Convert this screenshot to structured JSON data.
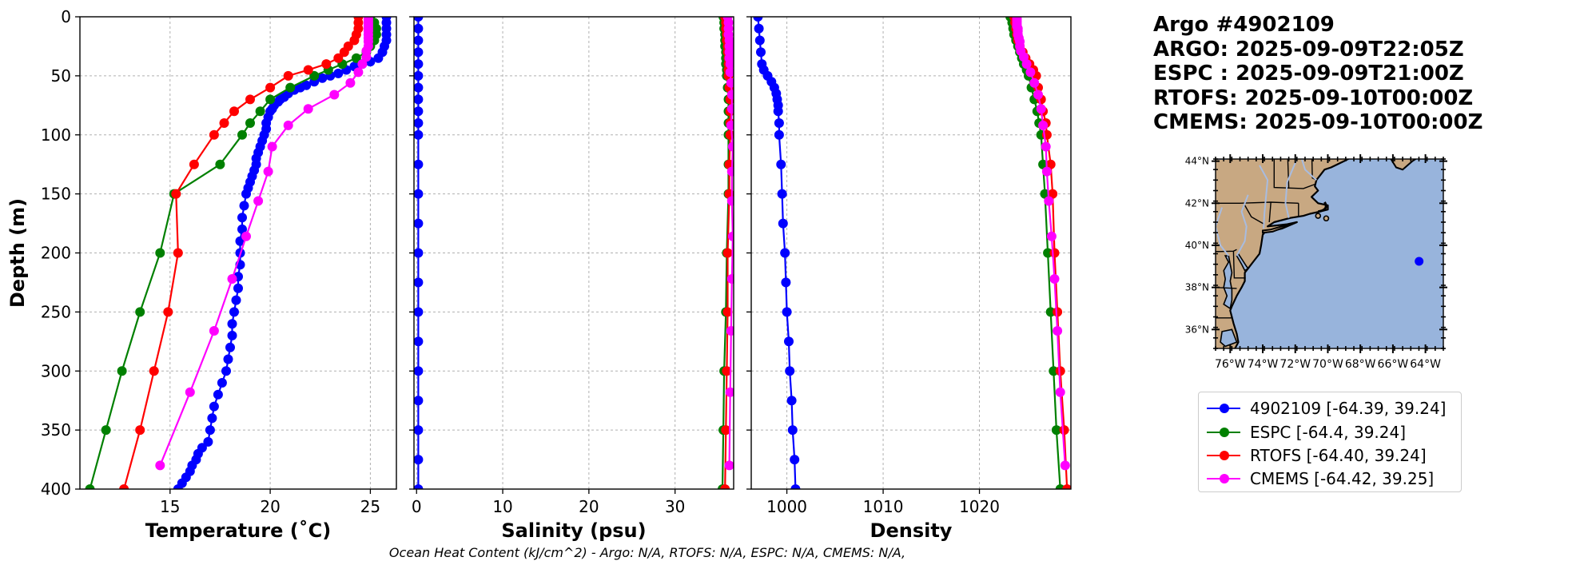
{
  "colors": {
    "argo": "#0000ff",
    "espc": "#008000",
    "rtofs": "#ff0000",
    "cmems": "#ff00ff",
    "land": "#c8a882",
    "ocean": "#98b4dc",
    "river": "#a8bce0",
    "grid": "#b0b0b0"
  },
  "title_lines": [
    "Argo #4902109",
    "ARGO: 2025-09-09T22:05Z",
    "ESPC : 2025-09-09T21:00Z",
    "RTOFS: 2025-09-10T00:00Z",
    "CMEMS: 2025-09-10T00:00Z"
  ],
  "footer": "Ocean Heat Content (kJ/cm^2) - Argo: N/A,  RTOFS: N/A,  ESPC: N/A,  CMEMS: N/A,",
  "legend": [
    {
      "key": "argo",
      "label": "4902109 [-64.39, 39.24]"
    },
    {
      "key": "espc",
      "label": "ESPC [-64.4, 39.24]"
    },
    {
      "key": "rtofs",
      "label": "RTOFS [-64.40, 39.24]"
    },
    {
      "key": "cmems",
      "label": "CMEMS [-64.42, 39.25]"
    }
  ],
  "map": {
    "lat_ticks": [
      "44°N",
      "42°N",
      "40°N",
      "38°N",
      "36°N"
    ],
    "lat_values": [
      44,
      42,
      40,
      38,
      36
    ],
    "lon_ticks": [
      "76°W",
      "74°W",
      "72°W",
      "70°W",
      "68°W",
      "66°W",
      "64°W"
    ],
    "lon_values": [
      -76,
      -74,
      -72,
      -70,
      -68,
      -66,
      -64
    ],
    "extent": {
      "lon_min": -76.9,
      "lon_max": -62.9,
      "lat_min": 35.1,
      "lat_max": 44.1
    },
    "float_position": {
      "lon": -64.39,
      "lat": 39.24
    }
  },
  "chart_data": [
    {
      "type": "line",
      "xlabel": "Temperature (˚C)",
      "ylabel": "Depth (m)",
      "xlim": [
        10.5,
        26.3
      ],
      "ylim": [
        400,
        0
      ],
      "xticks": [
        15,
        20,
        25
      ],
      "xtick_labels": [
        "15",
        "20",
        "25"
      ],
      "yticks": [
        0,
        50,
        100,
        150,
        200,
        250,
        300,
        350,
        400
      ],
      "ytick_labels": [
        "0",
        "50",
        "100",
        "150",
        "200",
        "250",
        "300",
        "350",
        "400"
      ],
      "series": [
        {
          "key": "argo",
          "name": "4902109",
          "depth": [
            0,
            5,
            10,
            15,
            20,
            25,
            30,
            35,
            38,
            40,
            42,
            45,
            48,
            50,
            52,
            55,
            58,
            60,
            62,
            65,
            68,
            70,
            72,
            75,
            78,
            80,
            85,
            90,
            95,
            100,
            105,
            110,
            115,
            120,
            125,
            130,
            135,
            140,
            145,
            150,
            160,
            170,
            180,
            190,
            200,
            210,
            220,
            230,
            240,
            250,
            260,
            270,
            280,
            290,
            300,
            310,
            320,
            330,
            340,
            350,
            360,
            365,
            370,
            375,
            380,
            385,
            390,
            395,
            400
          ],
          "values": [
            25.8,
            25.8,
            25.8,
            25.8,
            25.8,
            25.7,
            25.6,
            25.4,
            25.0,
            24.6,
            24.2,
            23.8,
            23.4,
            23.0,
            22.6,
            22.2,
            21.8,
            21.5,
            21.2,
            20.9,
            20.7,
            20.5,
            20.4,
            20.2,
            20.1,
            20.0,
            19.9,
            19.8,
            19.8,
            19.7,
            19.6,
            19.5,
            19.4,
            19.3,
            19.3,
            19.2,
            19.1,
            19.0,
            18.9,
            18.8,
            18.7,
            18.6,
            18.6,
            18.5,
            18.5,
            18.5,
            18.4,
            18.4,
            18.3,
            18.2,
            18.1,
            18.1,
            18.0,
            17.9,
            17.8,
            17.6,
            17.4,
            17.2,
            17.1,
            17.0,
            16.9,
            16.6,
            16.4,
            16.3,
            16.1,
            16.0,
            15.8,
            15.6,
            15.4
          ]
        },
        {
          "key": "espc",
          "name": "ESPC",
          "depth": [
            0,
            5,
            10,
            15,
            20,
            25,
            30,
            35,
            40,
            45,
            50,
            60,
            70,
            80,
            90,
            100,
            125,
            150,
            200,
            250,
            300,
            350,
            400
          ],
          "values": [
            25.0,
            25.2,
            25.3,
            25.3,
            25.2,
            25.0,
            24.8,
            24.3,
            23.6,
            22.9,
            22.2,
            21.0,
            20.0,
            19.5,
            19.0,
            18.6,
            17.5,
            15.2,
            14.5,
            13.5,
            12.6,
            11.8,
            11.0
          ]
        },
        {
          "key": "rtofs",
          "name": "RTOFS",
          "depth": [
            0,
            5,
            10,
            15,
            20,
            25,
            30,
            35,
            40,
            45,
            50,
            60,
            70,
            80,
            90,
            100,
            125,
            150,
            200,
            250,
            300,
            350,
            400
          ],
          "values": [
            24.4,
            24.4,
            24.4,
            24.3,
            24.2,
            23.9,
            23.7,
            23.4,
            22.8,
            21.9,
            20.9,
            20.0,
            19.0,
            18.2,
            17.7,
            17.2,
            16.2,
            15.3,
            15.4,
            14.9,
            14.2,
            13.5,
            12.7
          ]
        },
        {
          "key": "cmems",
          "name": "CMEMS",
          "depth": [
            0,
            2,
            4,
            6,
            8,
            10,
            12,
            15,
            18,
            21,
            25,
            29,
            34,
            40,
            47,
            56,
            66,
            78,
            92,
            110,
            131,
            156,
            186,
            222,
            266,
            318,
            380
          ],
          "values": [
            24.9,
            24.9,
            24.9,
            24.9,
            24.9,
            24.9,
            24.9,
            24.9,
            24.9,
            24.9,
            24.9,
            24.8,
            24.8,
            24.6,
            24.4,
            24.0,
            23.2,
            21.9,
            20.9,
            20.1,
            19.9,
            19.4,
            18.8,
            18.1,
            17.2,
            16.0,
            14.5
          ]
        }
      ]
    },
    {
      "type": "line",
      "xlabel": "Salinity (psu)",
      "ylabel": "",
      "xlim": [
        -0.3,
        36.8
      ],
      "ylim": [
        400,
        0
      ],
      "xticks": [
        0,
        10,
        20,
        30
      ],
      "xtick_labels": [
        "0",
        "10",
        "20",
        "30"
      ],
      "yticks": [
        0,
        50,
        100,
        150,
        200,
        250,
        300,
        350,
        400
      ],
      "series": [
        {
          "key": "argo",
          "name": "4902109",
          "depth": [
            0,
            10,
            20,
            30,
            40,
            50,
            60,
            70,
            80,
            90,
            100,
            125,
            150,
            175,
            200,
            225,
            250,
            275,
            300,
            325,
            350,
            375,
            400
          ],
          "values": [
            0.2,
            0.2,
            0.2,
            0.2,
            0.2,
            0.2,
            0.2,
            0.2,
            0.2,
            0.2,
            0.2,
            0.2,
            0.2,
            0.2,
            0.2,
            0.2,
            0.2,
            0.2,
            0.2,
            0.2,
            0.2,
            0.2,
            0.2
          ]
        },
        {
          "key": "espc",
          "name": "ESPC",
          "depth": [
            0,
            5,
            10,
            15,
            20,
            25,
            30,
            35,
            40,
            45,
            50,
            60,
            70,
            80,
            90,
            100,
            125,
            150,
            200,
            250,
            300,
            350,
            400
          ],
          "values": [
            35.6,
            35.7,
            35.7,
            35.8,
            35.8,
            35.8,
            35.9,
            35.9,
            35.9,
            36.0,
            36.0,
            36.1,
            36.2,
            36.2,
            36.2,
            36.2,
            36.2,
            36.2,
            36.0,
            35.9,
            35.7,
            35.6,
            35.5
          ]
        },
        {
          "key": "rtofs",
          "name": "RTOFS",
          "depth": [
            0,
            5,
            10,
            15,
            20,
            25,
            30,
            35,
            40,
            45,
            50,
            60,
            70,
            80,
            90,
            100,
            125,
            150,
            200,
            250,
            300,
            350,
            400
          ],
          "values": [
            35.8,
            35.9,
            35.9,
            36.0,
            36.0,
            36.1,
            36.1,
            36.2,
            36.2,
            36.2,
            36.2,
            36.3,
            36.4,
            36.4,
            36.4,
            36.4,
            36.3,
            36.3,
            36.1,
            36.1,
            36.0,
            35.9,
            35.8
          ]
        },
        {
          "key": "cmems",
          "name": "CMEMS",
          "depth": [
            0,
            5,
            10,
            15,
            20,
            25,
            30,
            35,
            40,
            47,
            56,
            66,
            78,
            92,
            110,
            131,
            156,
            186,
            222,
            266,
            318,
            380
          ],
          "values": [
            36.1,
            36.2,
            36.2,
            36.2,
            36.3,
            36.3,
            36.3,
            36.3,
            36.4,
            36.4,
            36.5,
            36.6,
            36.6,
            36.5,
            36.7,
            36.6,
            36.6,
            36.7,
            36.6,
            36.5,
            36.4,
            36.3
          ]
        }
      ]
    },
    {
      "type": "line",
      "xlabel": "Density",
      "ylabel": "",
      "xlim": [
        996.3,
        1029.5
      ],
      "ylim": [
        400,
        0
      ],
      "xticks": [
        1000,
        1010,
        1020
      ],
      "xtick_labels": [
        "1000",
        "1010",
        "1020"
      ],
      "yticks": [
        0,
        50,
        100,
        150,
        200,
        250,
        300,
        350,
        400
      ],
      "series": [
        {
          "key": "argo",
          "name": "4902109",
          "depth": [
            0,
            10,
            20,
            30,
            40,
            45,
            50,
            55,
            60,
            65,
            70,
            75,
            80,
            90,
            100,
            125,
            150,
            175,
            200,
            225,
            250,
            275,
            300,
            325,
            350,
            375,
            400
          ],
          "values": [
            997.0,
            997.1,
            997.2,
            997.3,
            997.4,
            997.6,
            998.0,
            998.4,
            998.7,
            998.9,
            999.0,
            999.1,
            999.1,
            999.2,
            999.2,
            999.4,
            999.5,
            999.6,
            999.8,
            999.9,
            1000.0,
            1000.2,
            1000.3,
            1000.5,
            1000.6,
            1000.8,
            1000.9
          ]
        },
        {
          "key": "espc",
          "name": "ESPC",
          "depth": [
            0,
            5,
            10,
            15,
            20,
            25,
            30,
            35,
            40,
            45,
            50,
            60,
            70,
            80,
            90,
            100,
            125,
            150,
            200,
            250,
            300,
            350,
            400
          ],
          "values": [
            1023.2,
            1023.4,
            1023.5,
            1023.6,
            1023.8,
            1024.0,
            1024.2,
            1024.4,
            1024.6,
            1024.9,
            1025.1,
            1025.4,
            1025.7,
            1026.0,
            1026.2,
            1026.4,
            1026.6,
            1026.8,
            1027.1,
            1027.4,
            1027.7,
            1028.0,
            1028.4
          ]
        },
        {
          "key": "rtofs",
          "name": "RTOFS",
          "depth": [
            0,
            5,
            10,
            15,
            20,
            25,
            30,
            35,
            40,
            45,
            50,
            60,
            70,
            80,
            90,
            100,
            125,
            150,
            200,
            250,
            300,
            350,
            400
          ],
          "values": [
            1023.6,
            1023.7,
            1023.8,
            1023.9,
            1024.0,
            1024.2,
            1024.5,
            1024.8,
            1025.2,
            1025.6,
            1025.9,
            1026.1,
            1026.4,
            1026.6,
            1026.9,
            1027.0,
            1027.4,
            1027.6,
            1027.8,
            1028.1,
            1028.4,
            1028.8,
            1029.1
          ]
        },
        {
          "key": "cmems",
          "name": "CMEMS",
          "depth": [
            0,
            2,
            4,
            6,
            8,
            10,
            12,
            15,
            18,
            21,
            25,
            29,
            34,
            40,
            47,
            56,
            66,
            78,
            92,
            110,
            131,
            156,
            186,
            222,
            266,
            318,
            380
          ],
          "values": [
            1023.9,
            1023.9,
            1023.9,
            1023.9,
            1023.9,
            1024.0,
            1024.0,
            1024.0,
            1024.1,
            1024.2,
            1024.2,
            1024.3,
            1024.6,
            1024.9,
            1025.3,
            1025.7,
            1026.1,
            1026.4,
            1026.6,
            1026.9,
            1027.0,
            1027.2,
            1027.5,
            1027.8,
            1028.1,
            1028.4,
            1028.9
          ]
        }
      ]
    }
  ]
}
